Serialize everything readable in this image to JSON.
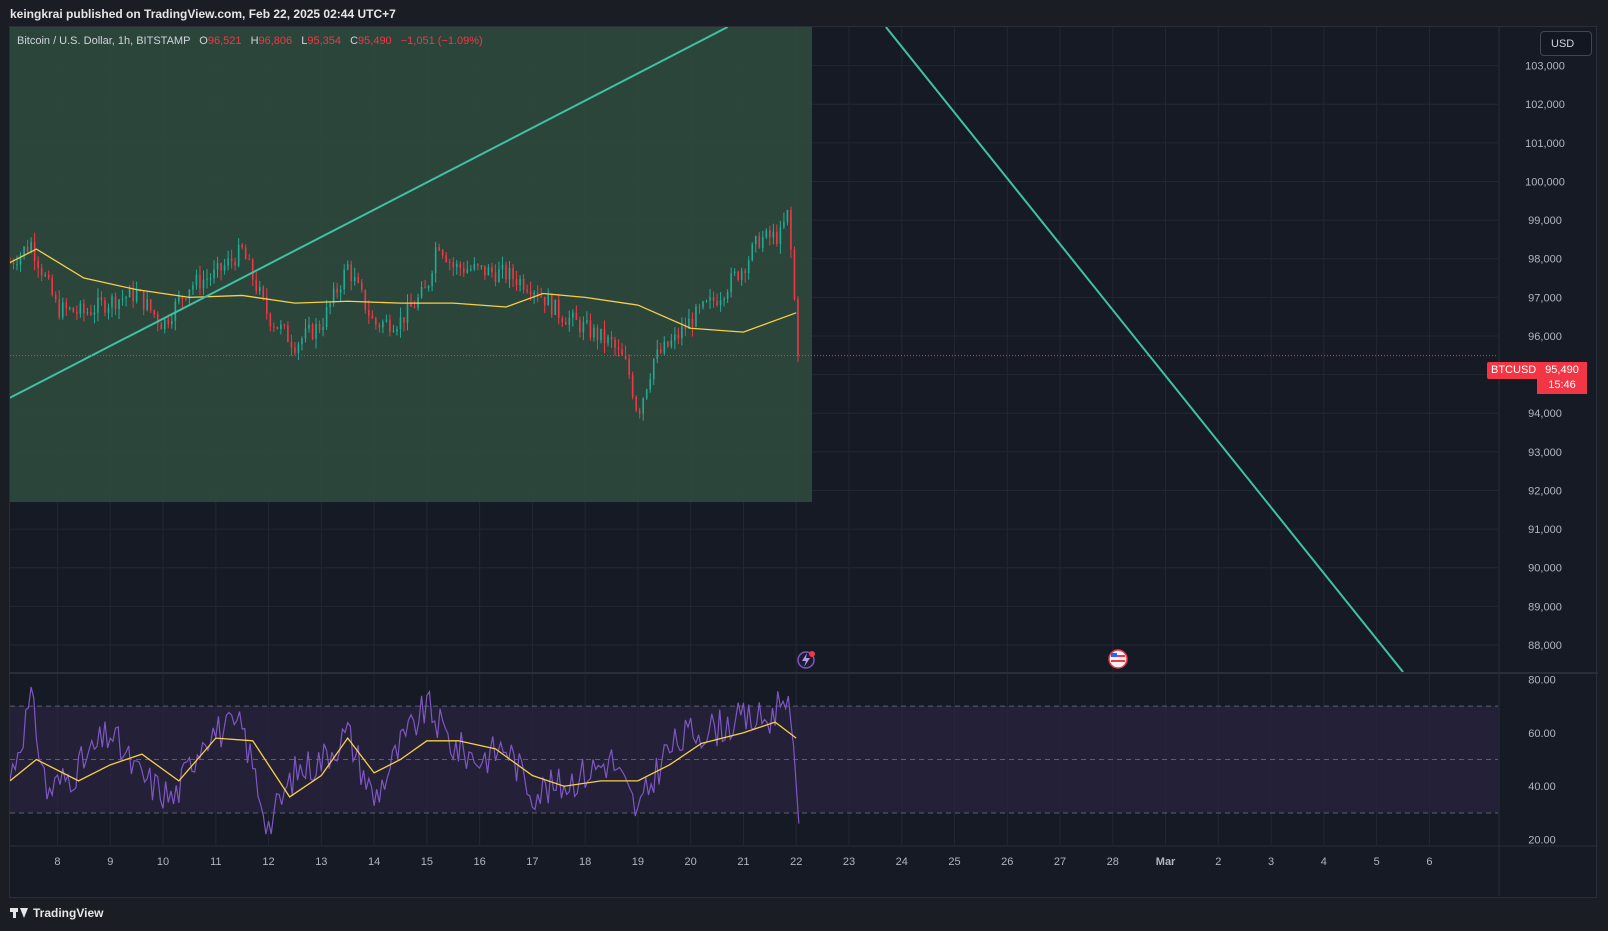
{
  "header": {
    "publisher": "keingkrai published on TradingView.com, Feb 22, 2025 02:44 UTC+7"
  },
  "legend": {
    "symbol": "Bitcoin / U.S. Dollar, 1h, BITSTAMP",
    "open_label": "O",
    "open": "96,521",
    "high_label": "H",
    "high": "96,806",
    "low_label": "L",
    "low": "95,354",
    "close_label": "C",
    "close": "95,490",
    "change": "−1,051 (−1.09%)"
  },
  "currency": "USD",
  "price_tag": {
    "symbol": "BTCUSD",
    "price": "95,490",
    "countdown": "15:46"
  },
  "footer": {
    "brand": "TradingView"
  },
  "colors": {
    "up": "#22ab94",
    "down": "#f23645",
    "ma": "#f7d046",
    "rsi": "#7e57c2",
    "trendline": "#3fc1a5",
    "zone": "#2f4a3d",
    "rsi_band": "#2a2340"
  },
  "icons": {
    "event_1": "lightning-icon",
    "event_2": "us-flag-icon",
    "logo": "tradingview-logo-icon"
  },
  "chart_data": [
    {
      "type": "candlestick",
      "title": "Bitcoin / U.S. Dollar, 1h, BITSTAMP",
      "ylim": [
        87300,
        104000
      ],
      "y_ticks": [
        88000,
        89000,
        90000,
        91000,
        92000,
        93000,
        94000,
        95000,
        96000,
        97000,
        98000,
        99000,
        100000,
        101000,
        102000,
        103000
      ],
      "y_tick_labels": [
        "88,000",
        "89,000",
        "90,000",
        "91,000",
        "92,000",
        "93,000",
        "94,000",
        "95,000",
        "96,000",
        "97,000",
        "98,000",
        "99,000",
        "100,000",
        "101,000",
        "102,000",
        "103,000"
      ],
      "x_tick_labels": [
        "8",
        "9",
        "10",
        "11",
        "12",
        "13",
        "14",
        "15",
        "16",
        "17",
        "18",
        "19",
        "20",
        "21",
        "22",
        "23",
        "24",
        "25",
        "26",
        "27",
        "28",
        "Mar",
        "2",
        "3",
        "4",
        "5",
        "6"
      ],
      "x_range_days": [
        7.1,
        35.3
      ],
      "last_price": 95490,
      "price_series_daily": [
        {
          "day": 7.1,
          "price": 97900
        },
        {
          "day": 7.5,
          "price": 98400
        },
        {
          "day": 8.0,
          "price": 96700
        },
        {
          "day": 8.5,
          "price": 96600
        },
        {
          "day": 9.0,
          "price": 96900
        },
        {
          "day": 9.5,
          "price": 97100
        },
        {
          "day": 10.0,
          "price": 96300
        },
        {
          "day": 10.5,
          "price": 97300
        },
        {
          "day": 11.0,
          "price": 97600
        },
        {
          "day": 11.5,
          "price": 98200
        },
        {
          "day": 12.0,
          "price": 96500
        },
        {
          "day": 12.5,
          "price": 95800
        },
        {
          "day": 13.0,
          "price": 96300
        },
        {
          "day": 13.5,
          "price": 97800
        },
        {
          "day": 14.0,
          "price": 96300
        },
        {
          "day": 14.5,
          "price": 96400
        },
        {
          "day": 15.0,
          "price": 97200
        },
        {
          "day": 15.2,
          "price": 98500
        },
        {
          "day": 15.5,
          "price": 97800
        },
        {
          "day": 16.0,
          "price": 97700
        },
        {
          "day": 16.5,
          "price": 97600
        },
        {
          "day": 17.0,
          "price": 97300
        },
        {
          "day": 17.5,
          "price": 96600
        },
        {
          "day": 18.0,
          "price": 96200
        },
        {
          "day": 18.5,
          "price": 95800
        },
        {
          "day": 18.8,
          "price": 95200
        },
        {
          "day": 19.0,
          "price": 94000
        },
        {
          "day": 19.3,
          "price": 95400
        },
        {
          "day": 19.7,
          "price": 95900
        },
        {
          "day": 20.0,
          "price": 96400
        },
        {
          "day": 20.5,
          "price": 97000
        },
        {
          "day": 21.0,
          "price": 97800
        },
        {
          "day": 21.3,
          "price": 98500
        },
        {
          "day": 21.7,
          "price": 98600
        },
        {
          "day": 21.85,
          "price": 99200
        },
        {
          "day": 21.95,
          "price": 97200
        },
        {
          "day": 22.05,
          "price": 95490
        }
      ],
      "ma_series": [
        {
          "day": 7.1,
          "value": 97900
        },
        {
          "day": 7.6,
          "value": 98250
        },
        {
          "day": 8.5,
          "value": 97500
        },
        {
          "day": 9.5,
          "value": 97200
        },
        {
          "day": 10.5,
          "value": 97000
        },
        {
          "day": 11.5,
          "value": 97050
        },
        {
          "day": 12.5,
          "value": 96850
        },
        {
          "day": 13.5,
          "value": 96900
        },
        {
          "day": 14.5,
          "value": 96850
        },
        {
          "day": 15.5,
          "value": 96850
        },
        {
          "day": 16.5,
          "value": 96750
        },
        {
          "day": 17.2,
          "value": 97100
        },
        {
          "day": 18.0,
          "value": 97000
        },
        {
          "day": 19.0,
          "value": 96800
        },
        {
          "day": 20.0,
          "value": 96200
        },
        {
          "day": 21.0,
          "value": 96100
        },
        {
          "day": 22.0,
          "value": 96600
        }
      ],
      "zone": {
        "day_start": 7.1,
        "day_end": 22.3,
        "price_low": 91700,
        "price_high": 104000
      },
      "trendlines": [
        {
          "from": {
            "day": 7.1,
            "price": 94400
          },
          "to": {
            "day": 20.7,
            "price": 104000
          }
        },
        {
          "from": {
            "day": 23.7,
            "price": 104000
          },
          "to": {
            "day": 33.5,
            "price": 87300
          }
        }
      ]
    },
    {
      "type": "line",
      "title": "RSI",
      "ylim": [
        18,
        82
      ],
      "y_ticks": [
        20,
        40,
        60,
        80
      ],
      "y_tick_labels": [
        "20.00",
        "40.00",
        "60.00",
        "80.00"
      ],
      "bands": {
        "upper": 70,
        "middle": 50,
        "lower": 30
      },
      "rsi_series": [
        {
          "day": 7.1,
          "value": 43
        },
        {
          "day": 7.5,
          "value": 72
        },
        {
          "day": 7.8,
          "value": 38
        },
        {
          "day": 8.3,
          "value": 45
        },
        {
          "day": 9.0,
          "value": 60
        },
        {
          "day": 9.5,
          "value": 45
        },
        {
          "day": 10.2,
          "value": 35
        },
        {
          "day": 10.8,
          "value": 60
        },
        {
          "day": 11.5,
          "value": 62
        },
        {
          "day": 12.0,
          "value": 25
        },
        {
          "day": 12.5,
          "value": 45
        },
        {
          "day": 13.0,
          "value": 50
        },
        {
          "day": 13.5,
          "value": 60
        },
        {
          "day": 14.0,
          "value": 35
        },
        {
          "day": 14.5,
          "value": 55
        },
        {
          "day": 15.0,
          "value": 70
        },
        {
          "day": 15.5,
          "value": 55
        },
        {
          "day": 16.0,
          "value": 50
        },
        {
          "day": 16.5,
          "value": 55
        },
        {
          "day": 17.0,
          "value": 38
        },
        {
          "day": 17.5,
          "value": 40
        },
        {
          "day": 18.0,
          "value": 45
        },
        {
          "day": 18.5,
          "value": 50
        },
        {
          "day": 19.0,
          "value": 30
        },
        {
          "day": 19.5,
          "value": 52
        },
        {
          "day": 20.0,
          "value": 60
        },
        {
          "day": 20.5,
          "value": 62
        },
        {
          "day": 21.0,
          "value": 65
        },
        {
          "day": 21.5,
          "value": 65
        },
        {
          "day": 21.8,
          "value": 76
        },
        {
          "day": 21.95,
          "value": 55
        },
        {
          "day": 22.05,
          "value": 26
        }
      ],
      "rsi_ma_series": [
        {
          "day": 7.1,
          "value": 42
        },
        {
          "day": 7.6,
          "value": 50
        },
        {
          "day": 8.4,
          "value": 42
        },
        {
          "day": 9.0,
          "value": 48
        },
        {
          "day": 9.6,
          "value": 52
        },
        {
          "day": 10.3,
          "value": 42
        },
        {
          "day": 11.0,
          "value": 58
        },
        {
          "day": 11.7,
          "value": 57
        },
        {
          "day": 12.4,
          "value": 36
        },
        {
          "day": 13.0,
          "value": 44
        },
        {
          "day": 13.5,
          "value": 58
        },
        {
          "day": 14.0,
          "value": 45
        },
        {
          "day": 14.5,
          "value": 50
        },
        {
          "day": 15.0,
          "value": 57
        },
        {
          "day": 15.6,
          "value": 57
        },
        {
          "day": 16.3,
          "value": 54
        },
        {
          "day": 17.0,
          "value": 44
        },
        {
          "day": 17.6,
          "value": 40
        },
        {
          "day": 18.3,
          "value": 42
        },
        {
          "day": 19.0,
          "value": 42
        },
        {
          "day": 19.6,
          "value": 48
        },
        {
          "day": 20.2,
          "value": 56
        },
        {
          "day": 21.0,
          "value": 60
        },
        {
          "day": 21.6,
          "value": 64
        },
        {
          "day": 22.0,
          "value": 58
        }
      ]
    }
  ]
}
